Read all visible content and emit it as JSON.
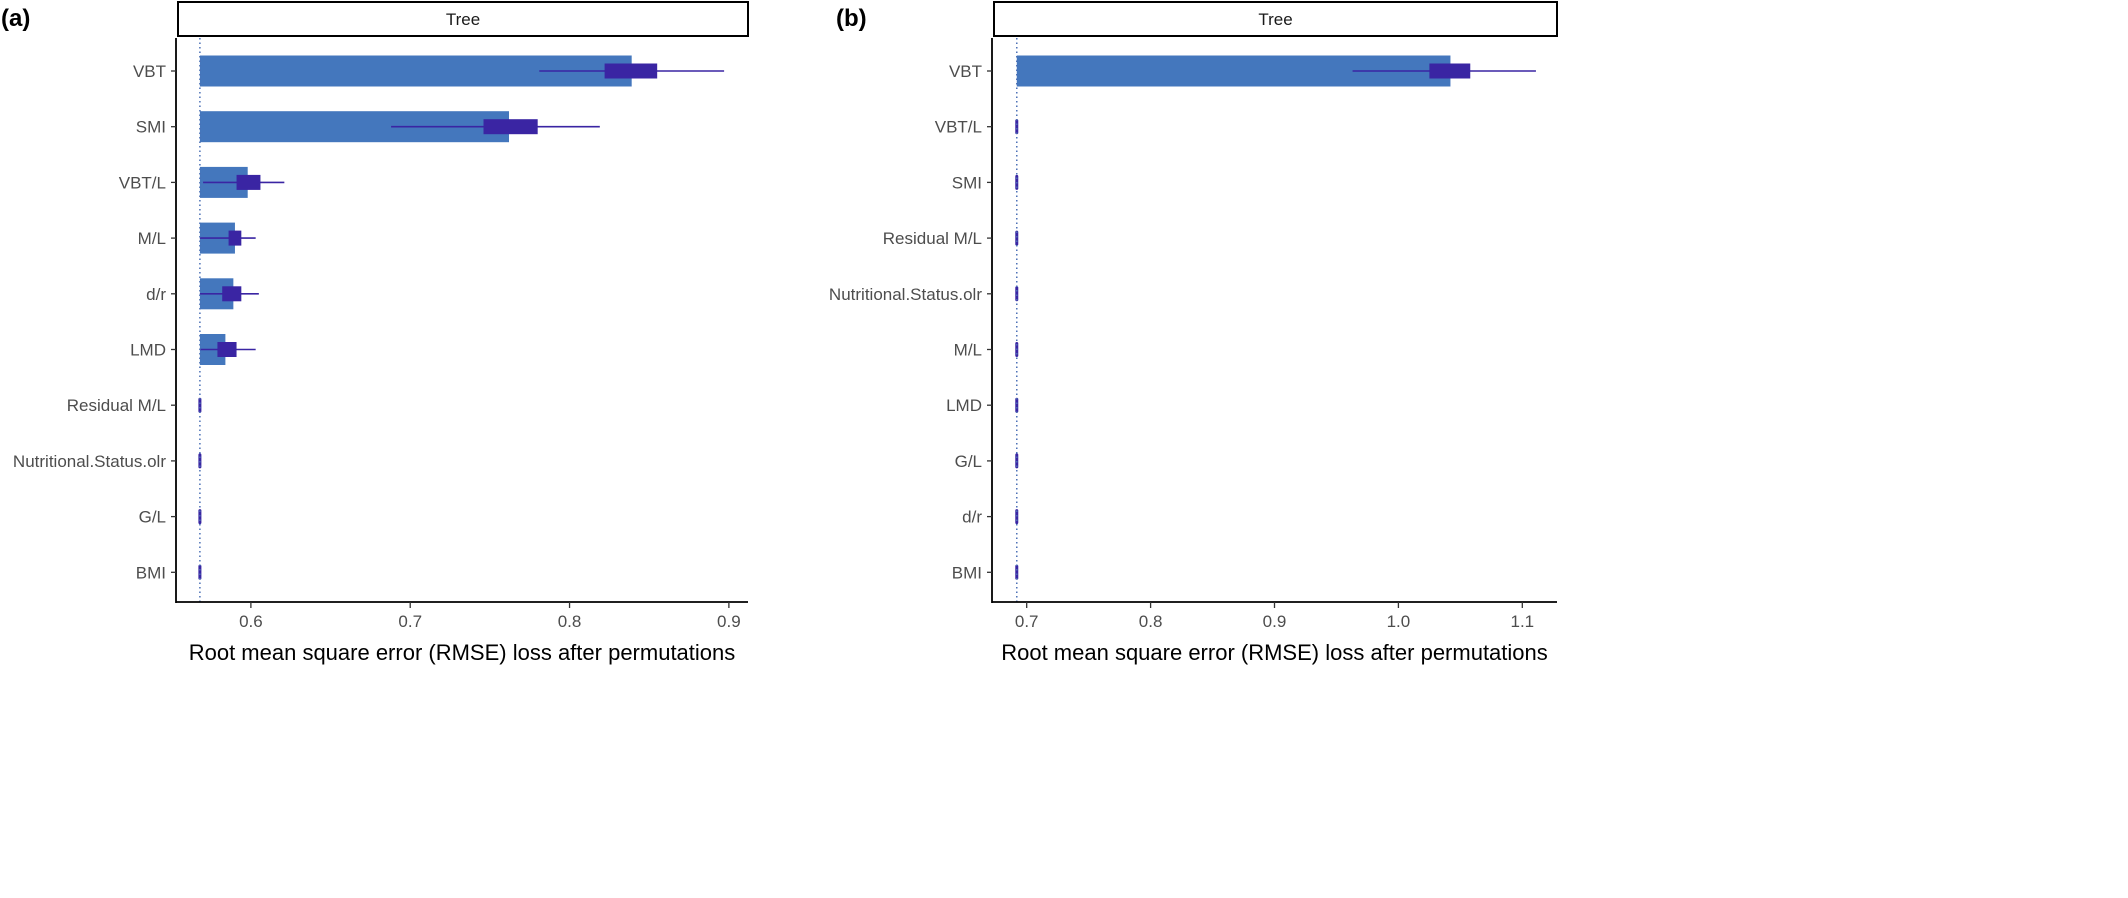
{
  "chart_data": [
    {
      "panel_label": "(a)",
      "type": "bar",
      "facet_title": "Tree",
      "xlabel": "Root mean square error (RMSE) loss after permutations",
      "ylabel": "",
      "baseline": 0.568,
      "xlim": [
        0.553,
        0.912
      ],
      "xticks": [
        0.6,
        0.7,
        0.8,
        0.9
      ],
      "xtick_labels": [
        "0.6",
        "0.7",
        "0.8",
        "0.9"
      ],
      "categories": [
        "VBT",
        "SMI",
        "VBT/L",
        "M/L",
        "d/r",
        "LMD",
        "Residual M/L",
        "Nutritional.Status.olr",
        "G/L",
        "BMI"
      ],
      "values": [
        0.839,
        0.762,
        0.598,
        0.59,
        0.589,
        0.584,
        0.568,
        0.568,
        0.568,
        0.568
      ],
      "boxplot": [
        {
          "min": 0.781,
          "q1": 0.822,
          "q3": 0.855,
          "max": 0.897
        },
        {
          "min": 0.688,
          "q1": 0.746,
          "q3": 0.78,
          "max": 0.819
        },
        {
          "min": 0.57,
          "q1": 0.591,
          "q3": 0.606,
          "max": 0.621
        },
        {
          "min": 0.568,
          "q1": 0.586,
          "q3": 0.594,
          "max": 0.603
        },
        {
          "min": 0.568,
          "q1": 0.582,
          "q3": 0.594,
          "max": 0.605
        },
        {
          "min": 0.568,
          "q1": 0.579,
          "q3": 0.591,
          "max": 0.603
        },
        {
          "min": 0.568,
          "q1": 0.568,
          "q3": 0.568,
          "max": 0.568
        },
        {
          "min": 0.568,
          "q1": 0.568,
          "q3": 0.568,
          "max": 0.568
        },
        {
          "min": 0.568,
          "q1": 0.568,
          "q3": 0.568,
          "max": 0.568
        },
        {
          "min": 0.568,
          "q1": 0.568,
          "q3": 0.568,
          "max": 0.568
        }
      ],
      "grid": false,
      "bar_color": "#4477bd",
      "box_color": "#3a25a3"
    },
    {
      "panel_label": "(b)",
      "type": "bar",
      "facet_title": "Tree",
      "xlabel": "Root mean square error (RMSE) loss after permutations",
      "ylabel": "",
      "baseline": 0.692,
      "xlim": [
        0.672,
        1.128
      ],
      "xticks": [
        0.7,
        0.8,
        0.9,
        1.0,
        1.1
      ],
      "xtick_labels": [
        "0.7",
        "0.8",
        "0.9",
        "1.0",
        "1.1"
      ],
      "categories": [
        "VBT",
        "VBT/L",
        "SMI",
        "Residual M/L",
        "Nutritional.Status.olr",
        "M/L",
        "LMD",
        "G/L",
        "d/r",
        "BMI"
      ],
      "values": [
        1.042,
        0.692,
        0.692,
        0.692,
        0.692,
        0.692,
        0.692,
        0.692,
        0.692,
        0.692
      ],
      "boxplot": [
        {
          "min": 0.963,
          "q1": 1.025,
          "q3": 1.058,
          "max": 1.111
        },
        {
          "min": 0.692,
          "q1": 0.692,
          "q3": 0.692,
          "max": 0.692
        },
        {
          "min": 0.692,
          "q1": 0.692,
          "q3": 0.692,
          "max": 0.692
        },
        {
          "min": 0.692,
          "q1": 0.692,
          "q3": 0.692,
          "max": 0.692
        },
        {
          "min": 0.692,
          "q1": 0.692,
          "q3": 0.692,
          "max": 0.692
        },
        {
          "min": 0.692,
          "q1": 0.692,
          "q3": 0.692,
          "max": 0.692
        },
        {
          "min": 0.692,
          "q1": 0.692,
          "q3": 0.692,
          "max": 0.692
        },
        {
          "min": 0.692,
          "q1": 0.692,
          "q3": 0.692,
          "max": 0.692
        },
        {
          "min": 0.692,
          "q1": 0.692,
          "q3": 0.692,
          "max": 0.692
        },
        {
          "min": 0.692,
          "q1": 0.692,
          "q3": 0.692,
          "max": 0.692
        }
      ],
      "grid": false,
      "bar_color": "#4477bd",
      "box_color": "#3a25a3"
    }
  ]
}
